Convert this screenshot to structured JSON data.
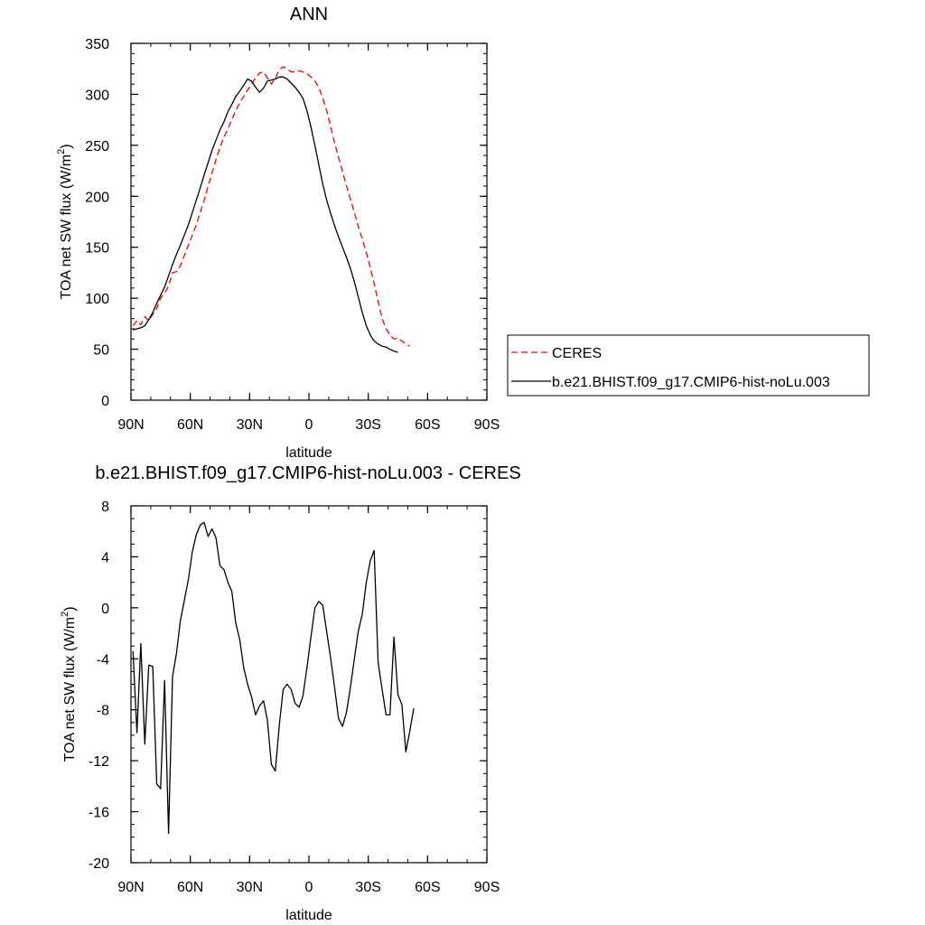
{
  "chart_data": [
    {
      "type": "line",
      "title": "ANN",
      "xlabel": "latitude",
      "ylabel": "TOA net SW flux (W/m",
      "ylabel_sup": "2",
      "ylabel_end": ")",
      "xlim": [
        90,
        -90
      ],
      "ylim": [
        0,
        350
      ],
      "x_tick_values": [
        90,
        60,
        30,
        0,
        -30,
        -60,
        -90
      ],
      "x_tick_labels": [
        "90N",
        "60N",
        "30N",
        "0",
        "30S",
        "60S",
        "90S"
      ],
      "y_ticks": [
        0,
        50,
        100,
        150,
        200,
        250,
        300,
        350
      ],
      "legend_position": "right",
      "series": [
        {
          "name": "CERES",
          "color": "#ff0000",
          "dash": "dashed",
          "points": [
            [
              89,
              73
            ],
            [
              87,
              78
            ],
            [
              85,
              74
            ],
            [
              83,
              82
            ],
            [
              81,
              78
            ],
            [
              79,
              84
            ],
            [
              77,
              90
            ],
            [
              75,
              100
            ],
            [
              73,
              105
            ],
            [
              71,
              112
            ],
            [
              69,
              125
            ],
            [
              67,
              126
            ],
            [
              65,
              132
            ],
            [
              63,
              142
            ],
            [
              61,
              152
            ],
            [
              59,
              162
            ],
            [
              57,
              172
            ],
            [
              55,
              184
            ],
            [
              53,
              196
            ],
            [
              51,
              210
            ],
            [
              49,
              223
            ],
            [
              47,
              236
            ],
            [
              45,
              248
            ],
            [
              43,
              258
            ],
            [
              41,
              266
            ],
            [
              39,
              275
            ],
            [
              37,
              284
            ],
            [
              35,
              292
            ],
            [
              33,
              298
            ],
            [
              31,
              304
            ],
            [
              29,
              310
            ],
            [
              27,
              316
            ],
            [
              25,
              321
            ],
            [
              23,
              322
            ],
            [
              21,
              316
            ],
            [
              19,
              310
            ],
            [
              17,
              316
            ],
            [
              15,
              324
            ],
            [
              13,
              327
            ],
            [
              11,
              325
            ],
            [
              9,
              322
            ],
            [
              7,
              322
            ],
            [
              5,
              323
            ],
            [
              3,
              322
            ],
            [
              1,
              320
            ],
            [
              -1,
              317
            ],
            [
              -3,
              313
            ],
            [
              -5,
              307
            ],
            [
              -7,
              296
            ],
            [
              -9,
              284
            ],
            [
              -11,
              268
            ],
            [
              -13,
              252
            ],
            [
              -15,
              238
            ],
            [
              -17,
              224
            ],
            [
              -19,
              210
            ],
            [
              -21,
              197
            ],
            [
              -23,
              184
            ],
            [
              -25,
              170
            ],
            [
              -27,
              158
            ],
            [
              -29,
              145
            ],
            [
              -31,
              130
            ],
            [
              -33,
              114
            ],
            [
              -35,
              97
            ],
            [
              -37,
              80
            ],
            [
              -39,
              70
            ],
            [
              -41,
              64
            ],
            [
              -43,
              60
            ],
            [
              -45,
              61
            ],
            [
              -47,
              58
            ],
            [
              -49,
              55
            ],
            [
              -51,
              53
            ]
          ]
        },
        {
          "name": "b.e21.BHIST.f09_g17.CMIP6-hist-noLu.003",
          "color": "#000000",
          "dash": "solid",
          "points": [
            [
              89,
              69
            ],
            [
              87,
              70
            ],
            [
              85,
              71
            ],
            [
              83,
              73
            ],
            [
              81,
              79
            ],
            [
              79,
              86
            ],
            [
              77,
              95
            ],
            [
              75,
              103
            ],
            [
              73,
              111
            ],
            [
              71,
              122
            ],
            [
              69,
              133
            ],
            [
              67,
              143
            ],
            [
              65,
              152
            ],
            [
              63,
              162
            ],
            [
              61,
              172
            ],
            [
              59,
              184
            ],
            [
              57,
              196
            ],
            [
              55,
              208
            ],
            [
              53,
              221
            ],
            [
              51,
              233
            ],
            [
              49,
              245
            ],
            [
              47,
              255
            ],
            [
              45,
              265
            ],
            [
              43,
              273
            ],
            [
              41,
              283
            ],
            [
              39,
              290
            ],
            [
              37,
              298
            ],
            [
              35,
              303
            ],
            [
              33,
              309
            ],
            [
              31,
              315
            ],
            [
              29,
              313
            ],
            [
              27,
              307
            ],
            [
              25,
              302
            ],
            [
              23,
              306
            ],
            [
              21,
              313
            ],
            [
              19,
              314
            ],
            [
              17,
              315
            ],
            [
              15,
              317
            ],
            [
              13,
              317
            ],
            [
              11,
              315
            ],
            [
              9,
              311
            ],
            [
              7,
              307
            ],
            [
              5,
              302
            ],
            [
              3,
              296
            ],
            [
              1,
              284
            ],
            [
              -1,
              268
            ],
            [
              -3,
              250
            ],
            [
              -5,
              231
            ],
            [
              -7,
              212
            ],
            [
              -9,
              196
            ],
            [
              -11,
              183
            ],
            [
              -13,
              171
            ],
            [
              -15,
              160
            ],
            [
              -17,
              150
            ],
            [
              -19,
              140
            ],
            [
              -21,
              129
            ],
            [
              -23,
              116
            ],
            [
              -25,
              101
            ],
            [
              -27,
              86
            ],
            [
              -29,
              73
            ],
            [
              -31,
              64
            ],
            [
              -33,
              58
            ],
            [
              -35,
              55
            ],
            [
              -37,
              53
            ],
            [
              -39,
              52
            ],
            [
              -41,
              50
            ],
            [
              -43,
              48
            ],
            [
              -45,
              47
            ]
          ]
        }
      ]
    },
    {
      "type": "line",
      "title": "b.e21.BHIST.f09_g17.CMIP6-hist-noLu.003 - CERES",
      "xlabel": "latitude",
      "ylabel": "TOA net SW flux (W/m",
      "ylabel_sup": "2",
      "ylabel_end": ")",
      "xlim": [
        90,
        -90
      ],
      "ylim": [
        -20,
        8
      ],
      "x_tick_values": [
        90,
        60,
        30,
        0,
        -30,
        -60,
        -90
      ],
      "x_tick_labels": [
        "90N",
        "60N",
        "30N",
        "0",
        "30S",
        "60S",
        "90S"
      ],
      "y_ticks": [
        -20,
        -16,
        -12,
        -8,
        -4,
        0,
        4,
        8
      ],
      "series": [
        {
          "color": "#000000",
          "dash": "solid",
          "points": [
            [
              89,
              -3.4
            ],
            [
              87,
              -9.8
            ],
            [
              85,
              -2.8
            ],
            [
              83,
              -10.7
            ],
            [
              81,
              -4.5
            ],
            [
              79,
              -4.6
            ],
            [
              77,
              -13.8
            ],
            [
              75,
              -14.2
            ],
            [
              73,
              -5.7
            ],
            [
              71,
              -17.7
            ],
            [
              69,
              -5.4
            ],
            [
              67,
              -3.6
            ],
            [
              65,
              -1.0
            ],
            [
              63,
              0.6
            ],
            [
              61,
              2.2
            ],
            [
              59,
              4.4
            ],
            [
              57,
              5.7
            ],
            [
              55,
              6.5
            ],
            [
              53,
              6.7
            ],
            [
              51,
              5.6
            ],
            [
              49,
              6.2
            ],
            [
              47,
              5.5
            ],
            [
              45,
              3.3
            ],
            [
              43,
              3.0
            ],
            [
              41,
              2.0
            ],
            [
              39,
              1.3
            ],
            [
              37,
              -1.2
            ],
            [
              35,
              -2.5
            ],
            [
              33,
              -4.7
            ],
            [
              31,
              -6.0
            ],
            [
              29,
              -7.0
            ],
            [
              27,
              -8.4
            ],
            [
              25,
              -7.7
            ],
            [
              23,
              -7.3
            ],
            [
              21,
              -8.8
            ],
            [
              19,
              -12.3
            ],
            [
              17,
              -12.8
            ],
            [
              15,
              -9.2
            ],
            [
              13,
              -6.4
            ],
            [
              11,
              -6.0
            ],
            [
              9,
              -6.4
            ],
            [
              7,
              -7.5
            ],
            [
              5,
              -7.8
            ],
            [
              3,
              -6.9
            ],
            [
              1,
              -4.7
            ],
            [
              -1,
              -2.3
            ],
            [
              -3,
              0.0
            ],
            [
              -5,
              0.5
            ],
            [
              -7,
              0.2
            ],
            [
              -9,
              -1.9
            ],
            [
              -11,
              -4.0
            ],
            [
              -13,
              -6.3
            ],
            [
              -15,
              -8.7
            ],
            [
              -17,
              -9.3
            ],
            [
              -19,
              -8.2
            ],
            [
              -21,
              -6.2
            ],
            [
              -23,
              -4.0
            ],
            [
              -25,
              -1.8
            ],
            [
              -27,
              -0.5
            ],
            [
              -29,
              2.0
            ],
            [
              -31,
              3.7
            ],
            [
              -33,
              4.5
            ],
            [
              -35,
              -4.3
            ],
            [
              -37,
              -6.4
            ],
            [
              -39,
              -8.4
            ],
            [
              -41,
              -8.4
            ],
            [
              -43,
              -2.3
            ],
            [
              -45,
              -6.8
            ],
            [
              -47,
              -7.6
            ],
            [
              -49,
              -11.3
            ],
            [
              -51,
              -9.7
            ],
            [
              -53,
              -7.9
            ]
          ]
        }
      ]
    }
  ]
}
